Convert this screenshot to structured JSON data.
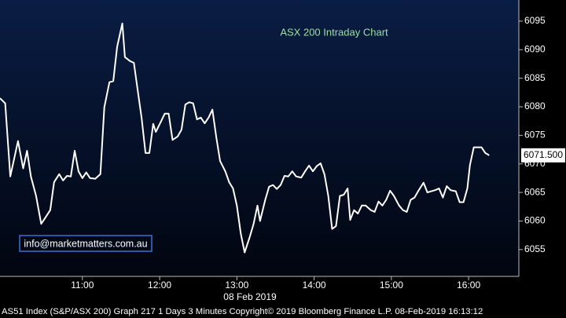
{
  "chart_data": {
    "type": "line",
    "title": "ASX 200 Intraday Chart",
    "xlabel": "08 Feb 2019",
    "watermark": "info@marketmatters.com.au",
    "source": "AS51 Index (S&P/ASX 200) Graph 217 1 Days 3 Minutes Copyright© 2019 Bloomberg Finance L.P. 08-Feb-2019 16:13:12",
    "color": "#ffffff",
    "x": [
      596,
      600,
      604,
      607,
      610,
      614,
      617,
      620,
      624,
      628,
      631,
      635,
      638,
      642,
      645,
      648,
      651,
      654,
      657,
      660,
      663,
      666,
      670,
      674,
      677,
      681,
      684,
      687,
      691,
      693,
      697,
      700,
      704,
      706,
      709,
      712,
      715,
      717,
      721,
      724,
      727,
      730,
      734,
      737,
      740,
      743,
      746,
      749,
      752,
      755,
      758,
      761,
      764,
      767,
      771,
      774,
      777,
      780,
      783,
      786,
      790,
      793,
      796,
      798,
      802,
      805,
      808,
      811,
      814,
      817,
      820,
      823,
      826,
      830,
      833,
      836,
      839,
      842,
      845,
      848,
      851,
      854,
      857,
      860,
      863,
      866,
      868,
      871,
      874,
      877,
      880,
      884,
      887,
      890,
      893,
      896,
      899,
      902,
      906,
      909,
      912,
      915,
      918,
      921,
      925,
      928,
      931,
      934,
      937,
      940,
      943,
      946,
      950,
      953,
      956,
      959,
      961,
      964,
      967,
      970,
      973,
      976
    ],
    "values": [
      6081.5,
      6080.6,
      6067.8,
      6070.9,
      6074.0,
      6069.2,
      6072.3,
      6067.8,
      6064.4,
      6059.5,
      6060.5,
      6061.9,
      6066.8,
      6068.2,
      6067.1,
      6067.9,
      6067.8,
      6072.3,
      6068.7,
      6067.5,
      6068.5,
      6067.5,
      6067.4,
      6068.2,
      6079.9,
      6084.3,
      6084.5,
      6090.5,
      6094.6,
      6088.7,
      6088.0,
      6087.7,
      6081.2,
      6078.1,
      6071.9,
      6071.9,
      6077.0,
      6075.6,
      6077.4,
      6078.8,
      6078.8,
      6074.2,
      6074.8,
      6076.0,
      6080.4,
      6080.8,
      6080.6,
      6077.8,
      6078.1,
      6077.1,
      6078.1,
      6079.5,
      6074.7,
      6070.5,
      6068.7,
      6066.8,
      6065.7,
      6062.7,
      6057.8,
      6054.5,
      6057.2,
      6059.5,
      6062.7,
      6060.0,
      6063.7,
      6066.0,
      6066.3,
      6065.6,
      6066.3,
      6067.9,
      6067.8,
      6068.7,
      6067.8,
      6067.6,
      6068.7,
      6069.7,
      6068.7,
      6069.6,
      6070.1,
      6068.2,
      6064.4,
      6058.6,
      6059.1,
      6064.4,
      6064.6,
      6065.7,
      6060.2,
      6061.9,
      6061.3,
      6062.7,
      6062.7,
      6061.9,
      6061.6,
      6063.4,
      6062.7,
      6063.7,
      6065.3,
      6064.4,
      6062.7,
      6061.9,
      6061.6,
      6063.7,
      6064.1,
      6065.3,
      6066.7,
      6065.0,
      6065.2,
      6065.4,
      6065.7,
      6064.1,
      6066.1,
      6065.4,
      6065.2,
      6063.3,
      6063.3,
      6065.7,
      6069.8,
      6072.9,
      6072.9,
      6072.9,
      6071.9,
      6071.5
    ],
    "last_price": {
      "value": 6071.5,
      "label": "6071.500"
    },
    "xlim": [
      596,
      999
    ],
    "xticks": [
      {
        "value": 660,
        "label": "11:00"
      },
      {
        "value": 720,
        "label": "12:00"
      },
      {
        "value": 780,
        "label": "13:00"
      },
      {
        "value": 840,
        "label": "14:00"
      },
      {
        "value": 900,
        "label": "15:00"
      },
      {
        "value": 960,
        "label": "16:00"
      }
    ],
    "ylim": [
      6050.3,
      6098.7
    ],
    "yticks": [
      6055,
      6060,
      6065,
      6070,
      6075,
      6080,
      6085,
      6090,
      6095
    ],
    "grid": false
  }
}
